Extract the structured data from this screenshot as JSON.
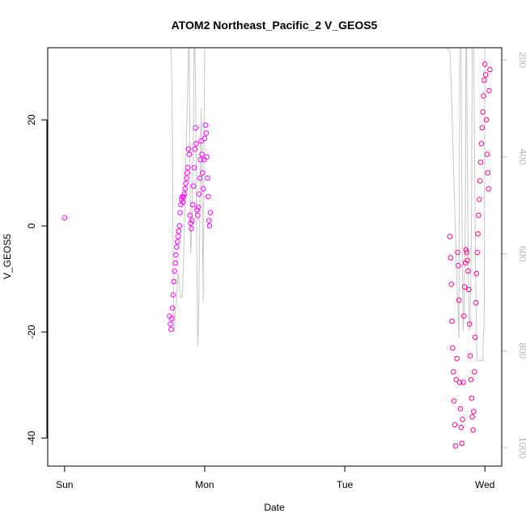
{
  "chart_data": {
    "type": "scatter",
    "title": "ATOM2 Northeast_Pacific_2 V_GEOS5",
    "xlabel": "Date",
    "ylabel": "V_GEOS5",
    "x_tick_labels": [
      "Sun",
      "Mon",
      "Tue",
      "Wed"
    ],
    "x_ticks_days": [
      0,
      1,
      2,
      3
    ],
    "xlim_days": [
      -0.12,
      3.12
    ],
    "ylim": [
      -45.3,
      33.6
    ],
    "y_ticks": [
      -40,
      -20,
      0,
      20
    ],
    "y2_ticks": [
      200,
      400,
      600,
      800,
      1000
    ],
    "y2lim_reversed": [
      175,
      1038
    ],
    "grid": false,
    "legend": "none",
    "colors": {
      "points_early": "#ff00ff",
      "points_late": "#ff0090",
      "pressure_line": "#c8c8c8"
    },
    "series": [
      {
        "marker": "open-circle",
        "points": [
          [
            0.0,
            1.5
          ],
          [
            0.75,
            -17.0
          ],
          [
            0.755,
            -18.5
          ],
          [
            0.76,
            -19.5
          ],
          [
            0.765,
            -17.5
          ],
          [
            0.77,
            -15.5
          ],
          [
            0.775,
            -13.0
          ],
          [
            0.78,
            -10.5
          ],
          [
            0.785,
            -8.5
          ],
          [
            0.79,
            -7.0
          ],
          [
            0.795,
            -5.5
          ],
          [
            0.8,
            -4.0
          ],
          [
            0.805,
            -3.0
          ],
          [
            0.81,
            -2.0
          ],
          [
            0.815,
            -1.0
          ],
          [
            0.82,
            0.0
          ],
          [
            0.825,
            2.5
          ],
          [
            0.83,
            4.0
          ],
          [
            0.835,
            5.0
          ],
          [
            0.84,
            5.5
          ],
          [
            0.845,
            4.5
          ],
          [
            0.85,
            5.5
          ],
          [
            0.855,
            6.0
          ],
          [
            0.86,
            7.0
          ],
          [
            0.865,
            8.0
          ],
          [
            0.87,
            9.0
          ],
          [
            0.875,
            10.0
          ],
          [
            0.88,
            11.0
          ],
          [
            0.885,
            14.5
          ],
          [
            0.89,
            13.5
          ],
          [
            0.895,
            2.0
          ],
          [
            0.9,
            0.5
          ],
          [
            0.905,
            -0.5
          ],
          [
            0.91,
            1.0
          ],
          [
            0.915,
            4.0
          ],
          [
            0.92,
            7.5
          ],
          [
            0.925,
            11.0
          ],
          [
            0.93,
            14.5
          ],
          [
            0.935,
            18.5
          ],
          [
            0.94,
            15.5
          ],
          [
            0.945,
            3.0
          ],
          [
            0.95,
            2.0
          ],
          [
            0.955,
            3.5
          ],
          [
            0.96,
            6.0
          ],
          [
            0.965,
            9.0
          ],
          [
            0.97,
            12.5
          ],
          [
            0.975,
            16.0
          ],
          [
            0.98,
            13.5
          ],
          [
            0.985,
            10.0
          ],
          [
            0.99,
            7.0
          ],
          [
            0.995,
            12.5
          ],
          [
            1.0,
            16.5
          ],
          [
            1.005,
            19.0
          ],
          [
            1.01,
            17.5
          ],
          [
            1.015,
            13.0
          ],
          [
            1.02,
            9.0
          ],
          [
            1.025,
            5.5
          ],
          [
            1.03,
            1.0
          ],
          [
            1.035,
            0.0
          ],
          [
            1.04,
            2.5
          ],
          [
            2.75,
            -2.0
          ],
          [
            2.755,
            -6.0
          ],
          [
            2.76,
            -11.0
          ],
          [
            2.765,
            -18.0
          ],
          [
            2.77,
            -23.0
          ],
          [
            2.775,
            -27.5
          ],
          [
            2.78,
            -33.0
          ],
          [
            2.785,
            -37.5
          ],
          [
            2.79,
            -41.5
          ],
          [
            2.795,
            -29.0
          ],
          [
            2.8,
            -25.0
          ],
          [
            2.805,
            -5.0
          ],
          [
            2.81,
            -7.5
          ],
          [
            2.815,
            -14.0
          ],
          [
            2.82,
            -29.5
          ],
          [
            2.825,
            -34.5
          ],
          [
            2.83,
            -38.0
          ],
          [
            2.835,
            -41.0
          ],
          [
            2.84,
            -36.5
          ],
          [
            2.845,
            -29.5
          ],
          [
            2.85,
            -17.0
          ],
          [
            2.855,
            -11.5
          ],
          [
            2.86,
            -7.0
          ],
          [
            2.865,
            -4.5
          ],
          [
            2.87,
            -5.0
          ],
          [
            2.875,
            -6.5
          ],
          [
            2.88,
            -8.5
          ],
          [
            2.885,
            -12.0
          ],
          [
            2.89,
            -18.5
          ],
          [
            2.895,
            -24.5
          ],
          [
            2.9,
            -29.0
          ],
          [
            2.905,
            -32.5
          ],
          [
            2.91,
            -36.0
          ],
          [
            2.915,
            -38.5
          ],
          [
            2.92,
            -35.0
          ],
          [
            2.925,
            -27.5
          ],
          [
            2.93,
            -21.0
          ],
          [
            2.935,
            -14.5
          ],
          [
            2.94,
            -9.0
          ],
          [
            2.945,
            -5.0
          ],
          [
            2.95,
            -1.5
          ],
          [
            2.955,
            2.0
          ],
          [
            2.96,
            5.0
          ],
          [
            2.965,
            8.5
          ],
          [
            2.97,
            12.0
          ],
          [
            2.975,
            15.5
          ],
          [
            2.98,
            18.5
          ],
          [
            2.985,
            21.5
          ],
          [
            2.99,
            24.5
          ],
          [
            2.995,
            27.5
          ],
          [
            3.0,
            30.5
          ],
          [
            3.005,
            28.5
          ],
          [
            3.01,
            20.0
          ],
          [
            3.015,
            13.5
          ],
          [
            3.02,
            10.0
          ],
          [
            3.025,
            7.0
          ],
          [
            3.03,
            25.5
          ],
          [
            3.035,
            29.5
          ]
        ]
      },
      {
        "name": "",
        "axis": "right",
        "style": "line",
        "points": [
          [
            0.75,
            175
          ],
          [
            0.76,
            175
          ],
          [
            0.765,
            230
          ],
          [
            0.77,
            360
          ],
          [
            0.775,
            620
          ],
          [
            0.78,
            760
          ],
          [
            0.785,
            760
          ],
          [
            0.79,
            720
          ],
          [
            0.8,
            690
          ],
          [
            0.81,
            640
          ],
          [
            0.82,
            660
          ],
          [
            0.83,
            690
          ],
          [
            0.84,
            690
          ],
          [
            0.85,
            600
          ],
          [
            0.86,
            480
          ],
          [
            0.87,
            360
          ],
          [
            0.88,
            250
          ],
          [
            0.885,
            175
          ],
          [
            0.89,
            175
          ],
          [
            0.895,
            400
          ],
          [
            0.9,
            600
          ],
          [
            0.905,
            570
          ],
          [
            0.91,
            520
          ],
          [
            0.915,
            420
          ],
          [
            0.92,
            320
          ],
          [
            0.925,
            175
          ],
          [
            0.93,
            175
          ],
          [
            0.935,
            250
          ],
          [
            0.94,
            450
          ],
          [
            0.945,
            650
          ],
          [
            0.95,
            790
          ],
          [
            0.955,
            760
          ],
          [
            0.96,
            650
          ],
          [
            0.965,
            520
          ],
          [
            0.97,
            380
          ],
          [
            0.975,
            300
          ],
          [
            0.98,
            420
          ],
          [
            0.985,
            560
          ],
          [
            0.99,
            700
          ],
          [
            0.995,
            380
          ],
          [
            1.0,
            175
          ],
          [
            2.65,
            175
          ],
          [
            2.72,
            175
          ],
          [
            2.75,
            180
          ],
          [
            2.76,
            250
          ],
          [
            2.77,
            360
          ],
          [
            2.78,
            460
          ],
          [
            2.79,
            560
          ],
          [
            2.8,
            660
          ],
          [
            2.81,
            730
          ],
          [
            2.815,
            775
          ],
          [
            2.82,
            175
          ],
          [
            2.83,
            175
          ],
          [
            2.835,
            450
          ],
          [
            2.84,
            650
          ],
          [
            2.845,
            760
          ],
          [
            2.85,
            730
          ],
          [
            2.855,
            620
          ],
          [
            2.86,
            520
          ],
          [
            2.865,
            175
          ],
          [
            2.87,
            175
          ],
          [
            2.875,
            400
          ],
          [
            2.88,
            600
          ],
          [
            2.885,
            700
          ],
          [
            2.89,
            760
          ],
          [
            2.895,
            740
          ],
          [
            2.9,
            640
          ],
          [
            2.905,
            500
          ],
          [
            2.91,
            175
          ],
          [
            2.92,
            175
          ],
          [
            2.925,
            350
          ],
          [
            2.93,
            520
          ],
          [
            2.935,
            680
          ],
          [
            2.94,
            790
          ],
          [
            2.945,
            820
          ],
          [
            2.95,
            820
          ],
          [
            2.955,
            820
          ],
          [
            2.96,
            820
          ],
          [
            2.965,
            820
          ],
          [
            2.97,
            820
          ],
          [
            2.975,
            820
          ],
          [
            2.98,
            820
          ],
          [
            2.985,
            820
          ],
          [
            2.99,
            760
          ],
          [
            2.995,
            760
          ],
          [
            3.0,
            175
          ]
        ]
      }
    ]
  }
}
